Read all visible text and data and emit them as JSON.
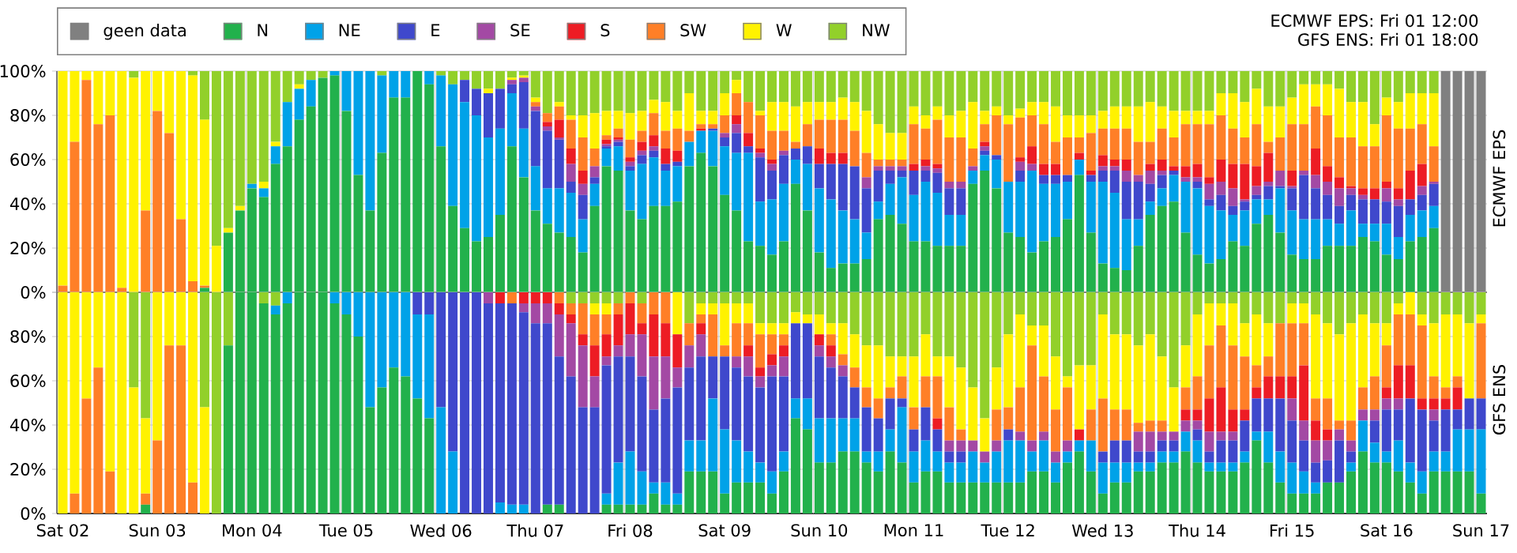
{
  "chart_data": [
    {
      "type": "bar",
      "stacked": true,
      "grid": true,
      "legend": "top left",
      "tick_labels": "y",
      "ylabel": "ECMWF EPS",
      "annotations": [
        "ECMWF EPS: Fri 01 12:00",
        "GFS ENS: Fri 01 18:00"
      ],
      "ylim": [
        0,
        100
      ],
      "yticks": [
        {
          "value": 0,
          "label": "0%"
        },
        {
          "value": 20,
          "label": "20%"
        },
        {
          "value": 40,
          "label": "40%"
        },
        {
          "value": 60,
          "label": "60%"
        },
        {
          "value": 80,
          "label": "80%"
        },
        {
          "value": 100,
          "label": "100%"
        }
      ],
      "categories": [
        null,
        null,
        null,
        null,
        null,
        null,
        null,
        null,
        null,
        null,
        null,
        null,
        null,
        null,
        null,
        null,
        null,
        null,
        null,
        null,
        null,
        null,
        null,
        null,
        null,
        null,
        null,
        null,
        null,
        null,
        null,
        null,
        null,
        null,
        null,
        null,
        null,
        null,
        null,
        null,
        null,
        null,
        null,
        null,
        null,
        null,
        null,
        null,
        null,
        null,
        null,
        null,
        null,
        null,
        null,
        null,
        null,
        null,
        null,
        null,
        null,
        null,
        null,
        null,
        null,
        null,
        null,
        null,
        null,
        null,
        null,
        null,
        null,
        null,
        null,
        null,
        null,
        null,
        null,
        null,
        null,
        null,
        null,
        null,
        null,
        null,
        null,
        null,
        null,
        null,
        null,
        null,
        null,
        null,
        null,
        null,
        null,
        null,
        null,
        null,
        null,
        null,
        null,
        null,
        null,
        null,
        null,
        null,
        null,
        null,
        null,
        null,
        null,
        null,
        null,
        null,
        null,
        null,
        null,
        null,
        null
      ],
      "series": [
        {
          "name": "geen data",
          "color": "#808080",
          "values": [
            0,
            0,
            0,
            0,
            0,
            0,
            0,
            0,
            0,
            0,
            0,
            0,
            0,
            0,
            0,
            0,
            0,
            0,
            0,
            0,
            0,
            0,
            0,
            0,
            0,
            0,
            0,
            0,
            0,
            0,
            0,
            0,
            0,
            0,
            0,
            0,
            0,
            0,
            0,
            0,
            0,
            0,
            0,
            0,
            0,
            0,
            0,
            0,
            0,
            0,
            0,
            0,
            0,
            0,
            0,
            0,
            0,
            0,
            0,
            0,
            0,
            0,
            0,
            0,
            0,
            0,
            0,
            0,
            0,
            0,
            0,
            0,
            0,
            0,
            0,
            0,
            0,
            0,
            0,
            0,
            0,
            0,
            0,
            0,
            0,
            0,
            0,
            0,
            0,
            0,
            0,
            0,
            0,
            0,
            0,
            0,
            0,
            0,
            0,
            0,
            0,
            0,
            0,
            0,
            0,
            0,
            0,
            0,
            0,
            0,
            0,
            0,
            0,
            0,
            0,
            0,
            0,
            100,
            100,
            100,
            100
          ]
        },
        {
          "name": "N",
          "color": "#22b14c",
          "values": [
            0,
            0,
            0,
            0,
            0,
            0,
            0,
            0,
            0,
            0,
            0,
            0,
            2,
            0,
            27,
            37,
            47,
            43,
            58,
            66,
            78,
            84,
            97,
            98,
            82,
            53,
            37,
            63,
            88,
            88,
            100,
            94,
            66,
            39,
            29,
            23,
            25,
            35,
            66,
            52,
            37,
            31,
            27,
            25,
            18,
            39,
            57,
            55,
            37,
            33,
            39,
            39,
            41,
            57,
            63,
            57,
            44,
            37,
            23,
            21,
            17,
            23,
            49,
            37,
            18,
            11,
            13,
            13,
            15,
            33,
            35,
            31,
            23,
            23,
            21,
            21,
            21,
            49,
            55,
            47,
            27,
            25,
            18,
            23,
            25,
            33,
            53,
            27,
            13,
            11,
            10,
            21,
            35,
            39,
            41,
            27,
            17,
            13,
            15,
            23,
            21,
            31,
            35,
            27,
            17,
            15,
            15,
            21,
            21,
            21,
            25,
            23,
            17,
            15,
            23,
            25,
            29,
            0,
            0,
            0,
            0
          ]
        },
        {
          "name": "NE",
          "color": "#00a2e8",
          "values": [
            0,
            0,
            0,
            0,
            0,
            0,
            0,
            0,
            0,
            0,
            0,
            0,
            0,
            0,
            0,
            0,
            2,
            4,
            8,
            20,
            14,
            12,
            0,
            2,
            18,
            47,
            63,
            35,
            12,
            12,
            0,
            6,
            32,
            55,
            57,
            57,
            45,
            39,
            24,
            22,
            20,
            16,
            20,
            20,
            15,
            10,
            8,
            11,
            18,
            25,
            22,
            16,
            16,
            11,
            10,
            16,
            22,
            26,
            40,
            20,
            25,
            26,
            11,
            21,
            29,
            31,
            24,
            20,
            12,
            8,
            14,
            21,
            21,
            27,
            24,
            14,
            14,
            6,
            7,
            13,
            23,
            25,
            37,
            26,
            24,
            17,
            7,
            23,
            37,
            34,
            23,
            12,
            6,
            8,
            12,
            23,
            30,
            26,
            22,
            12,
            16,
            11,
            7,
            20,
            20,
            18,
            18,
            12,
            10,
            16,
            6,
            8,
            14,
            10,
            12,
            12,
            10,
            0,
            0,
            0,
            0
          ]
        },
        {
          "name": "E",
          "color": "#3f48cc",
          "values": [
            0,
            0,
            0,
            0,
            0,
            0,
            0,
            0,
            0,
            0,
            0,
            0,
            0,
            0,
            0,
            0,
            0,
            0,
            0,
            0,
            0,
            0,
            0,
            0,
            0,
            0,
            0,
            0,
            0,
            0,
            0,
            0,
            0,
            0,
            10,
            12,
            20,
            18,
            4,
            21,
            25,
            26,
            22,
            5,
            11,
            3,
            1,
            2,
            2,
            4,
            3,
            3,
            2,
            0,
            0,
            1,
            4,
            9,
            3,
            20,
            13,
            13,
            5,
            8,
            11,
            16,
            21,
            24,
            20,
            14,
            6,
            3,
            11,
            5,
            9,
            12,
            12,
            0,
            2,
            2,
            0,
            5,
            0,
            4,
            4,
            3,
            0,
            3,
            5,
            10,
            17,
            17,
            8,
            6,
            2,
            0,
            3,
            3,
            7,
            4,
            4,
            2,
            6,
            1,
            10,
            20,
            14,
            11,
            8,
            7,
            11,
            11,
            10,
            14,
            7,
            7,
            10,
            0,
            0,
            0,
            0
          ]
        },
        {
          "name": "SE",
          "color": "#a349a4",
          "values": [
            0,
            0,
            0,
            0,
            0,
            0,
            0,
            0,
            0,
            0,
            0,
            0,
            0,
            0,
            0,
            0,
            0,
            0,
            0,
            0,
            0,
            0,
            0,
            0,
            0,
            0,
            0,
            0,
            0,
            0,
            0,
            0,
            0,
            0,
            0,
            0,
            0,
            0,
            2,
            2,
            2,
            2,
            1,
            8,
            5,
            5,
            1,
            1,
            2,
            2,
            2,
            0,
            0,
            0,
            0,
            0,
            2,
            4,
            0,
            2,
            3,
            2,
            0,
            0,
            0,
            0,
            0,
            0,
            5,
            2,
            2,
            2,
            0,
            2,
            2,
            3,
            3,
            2,
            2,
            0,
            0,
            4,
            3,
            0,
            0,
            0,
            0,
            0,
            2,
            2,
            5,
            3,
            6,
            2,
            0,
            2,
            2,
            7,
            6,
            8,
            1,
            4,
            2,
            7,
            1,
            2,
            6,
            6,
            8,
            3,
            2,
            0,
            6,
            3,
            0,
            4,
            1,
            0,
            0,
            0,
            0
          ]
        },
        {
          "name": "S",
          "color": "#ed1c24",
          "values": [
            0,
            0,
            0,
            0,
            0,
            0,
            0,
            0,
            0,
            0,
            0,
            0,
            0,
            0,
            0,
            0,
            0,
            0,
            0,
            0,
            0,
            0,
            0,
            0,
            0,
            0,
            0,
            0,
            0,
            0,
            0,
            0,
            0,
            0,
            0,
            0,
            0,
            0,
            0,
            0,
            0,
            2,
            8,
            7,
            6,
            0,
            2,
            1,
            2,
            4,
            5,
            7,
            5,
            0,
            1,
            0,
            0,
            4,
            6,
            2,
            2,
            0,
            0,
            0,
            7,
            5,
            5,
            0,
            0,
            0,
            0,
            0,
            3,
            3,
            2,
            0,
            0,
            0,
            2,
            0,
            0,
            2,
            8,
            5,
            5,
            0,
            3,
            2,
            5,
            3,
            5,
            0,
            3,
            5,
            2,
            5,
            6,
            3,
            10,
            11,
            16,
            9,
            13,
            0,
            7,
            0,
            12,
            7,
            5,
            1,
            3,
            5,
            3,
            5,
            13,
            10,
            0,
            0,
            0,
            0,
            0
          ]
        },
        {
          "name": "SW",
          "color": "#ff7f27",
          "values": [
            3,
            68,
            96,
            76,
            80,
            2,
            0,
            37,
            82,
            72,
            33,
            5,
            1,
            0,
            0,
            0,
            0,
            0,
            0,
            0,
            0,
            0,
            0,
            0,
            0,
            0,
            0,
            0,
            0,
            0,
            0,
            0,
            0,
            0,
            0,
            0,
            0,
            0,
            0,
            0,
            2,
            4,
            6,
            13,
            15,
            8,
            2,
            4,
            8,
            5,
            10,
            8,
            10,
            5,
            2,
            2,
            8,
            10,
            14,
            15,
            13,
            9,
            3,
            10,
            13,
            15,
            15,
            16,
            11,
            3,
            3,
            3,
            18,
            14,
            20,
            20,
            20,
            8,
            8,
            18,
            26,
            18,
            14,
            18,
            10,
            17,
            7,
            17,
            12,
            14,
            14,
            15,
            10,
            14,
            13,
            19,
            18,
            24,
            20,
            16,
            12,
            19,
            5,
            15,
            21,
            21,
            19,
            23,
            18,
            22,
            19,
            19,
            30,
            27,
            19,
            18,
            16,
            0,
            0,
            0,
            0
          ]
        },
        {
          "name": "W",
          "color": "#fff200",
          "values": [
            97,
            32,
            4,
            24,
            20,
            98,
            97,
            63,
            18,
            28,
            67,
            93,
            75,
            21,
            2,
            2,
            0,
            3,
            2,
            0,
            2,
            0,
            0,
            0,
            0,
            0,
            0,
            0,
            0,
            0,
            0,
            0,
            0,
            0,
            0,
            0,
            2,
            0,
            1,
            1,
            2,
            0,
            2,
            2,
            10,
            16,
            11,
            8,
            12,
            9,
            6,
            13,
            8,
            17,
            6,
            6,
            10,
            6,
            0,
            2,
            13,
            13,
            16,
            10,
            8,
            8,
            10,
            13,
            19,
            16,
            12,
            12,
            8,
            6,
            6,
            10,
            12,
            21,
            6,
            4,
            4,
            4,
            6,
            10,
            16,
            10,
            10,
            8,
            8,
            10,
            10,
            16,
            18,
            10,
            12,
            6,
            6,
            6,
            10,
            16,
            16,
            16,
            16,
            14,
            12,
            18,
            10,
            14,
            22,
            16,
            20,
            10,
            8,
            12,
            16,
            14,
            24,
            0,
            0,
            0,
            0
          ]
        },
        {
          "name": "NW",
          "color": "#92d02a",
          "values": [
            0,
            0,
            0,
            0,
            0,
            0,
            3,
            0,
            0,
            0,
            0,
            2,
            22,
            79,
            71,
            61,
            51,
            50,
            32,
            14,
            6,
            4,
            3,
            0,
            0,
            0,
            0,
            2,
            0,
            0,
            0,
            0,
            2,
            6,
            4,
            8,
            8,
            8,
            3,
            2,
            12,
            19,
            14,
            20,
            20,
            19,
            18,
            18,
            19,
            18,
            13,
            14,
            18,
            10,
            18,
            18,
            10,
            4,
            14,
            18,
            14,
            14,
            16,
            14,
            14,
            14,
            12,
            14,
            18,
            24,
            28,
            28,
            16,
            20,
            16,
            20,
            18,
            14,
            18,
            16,
            20,
            17,
            14,
            14,
            16,
            20,
            20,
            20,
            18,
            16,
            16,
            16,
            14,
            16,
            18,
            18,
            18,
            18,
            10,
            10,
            14,
            8,
            16,
            16,
            12,
            6,
            6,
            6,
            8,
            14,
            14,
            24,
            12,
            14,
            10,
            10,
            10,
            0,
            0,
            0,
            0
          ]
        }
      ]
    },
    {
      "type": "bar",
      "stacked": true,
      "grid": true,
      "legend": false,
      "ylabel": "GFS ENS",
      "ylim": [
        0,
        100
      ],
      "yticks": [
        {
          "value": 0,
          "label": "0%"
        },
        {
          "value": 20,
          "label": "20%"
        },
        {
          "value": 40,
          "label": "40%"
        },
        {
          "value": 60,
          "label": "60%"
        },
        {
          "value": 80,
          "label": "80%"
        },
        {
          "value": 100,
          "label": null
        }
      ],
      "categories": [
        "Sat 02",
        null,
        null,
        null,
        null,
        null,
        null,
        null,
        "Sun 03",
        null,
        null,
        null,
        null,
        null,
        null,
        null,
        "Mon 04",
        null,
        null,
        null,
        null,
        null,
        null,
        null,
        "Tue 05",
        null,
        null,
        null,
        null,
        null,
        null,
        null,
        "Wed 06",
        null,
        null,
        null,
        null,
        null,
        null,
        null,
        "Thu 07",
        null,
        null,
        null,
        null,
        null,
        null,
        null,
        "Fri 08",
        null,
        null,
        null,
        null,
        null,
        null,
        null,
        "Sat 09",
        null,
        null,
        null,
        null,
        null,
        null,
        null,
        "Sun 10",
        null,
        null,
        null,
        null,
        null,
        null,
        null,
        "Mon 11",
        null,
        null,
        null,
        null,
        null,
        null,
        null,
        "Tue 12",
        null,
        null,
        null,
        null,
        null,
        null,
        null,
        "Wed 13",
        null,
        null,
        null,
        null,
        null,
        null,
        null,
        "Thu 14",
        null,
        null,
        null,
        null,
        null,
        null,
        null,
        "Fri 15",
        null,
        null,
        null,
        null,
        null,
        null,
        null,
        "Sat 16",
        null,
        null,
        null,
        null,
        null,
        null,
        null,
        "Sun 17"
      ],
      "series": [
        {
          "color": "#22b14c",
          "values": [
            0,
            0,
            0,
            0,
            0,
            0,
            0,
            4,
            0,
            0,
            0,
            0,
            0,
            0,
            76,
            100,
            100,
            95,
            90,
            95,
            100,
            100,
            100,
            95,
            90,
            80,
            48,
            57,
            66,
            62,
            52,
            43,
            0,
            0,
            0,
            0,
            0,
            0,
            0,
            0,
            0,
            4,
            4,
            0,
            0,
            0,
            4,
            4,
            4,
            4,
            9,
            4,
            4,
            19,
            19,
            19,
            9,
            14,
            14,
            14,
            9,
            19,
            43,
            38,
            23,
            23,
            28,
            28,
            23,
            19,
            28,
            23,
            14,
            19,
            19,
            14,
            14,
            14,
            14,
            14,
            14,
            14,
            19,
            19,
            14,
            23,
            28,
            19,
            9,
            14,
            14,
            19,
            19,
            23,
            23,
            28,
            23,
            19,
            19,
            19,
            23,
            33,
            23,
            14,
            9,
            9,
            9,
            14,
            14,
            19,
            28,
            23,
            23,
            19,
            14,
            9,
            19,
            19,
            19,
            19,
            9
          ]
        },
        {
          "color": "#00a2e8",
          "values": [
            0,
            0,
            0,
            0,
            0,
            0,
            0,
            0,
            0,
            0,
            0,
            0,
            0,
            0,
            0,
            0,
            0,
            0,
            4,
            5,
            0,
            0,
            0,
            5,
            10,
            20,
            52,
            43,
            34,
            38,
            38,
            47,
            48,
            28,
            0,
            0,
            0,
            5,
            4,
            4,
            0,
            0,
            0,
            0,
            0,
            0,
            5,
            19,
            24,
            15,
            5,
            10,
            5,
            14,
            14,
            33,
            29,
            19,
            14,
            9,
            10,
            9,
            9,
            14,
            20,
            20,
            15,
            15,
            5,
            9,
            10,
            25,
            14,
            14,
            9,
            9,
            9,
            14,
            9,
            14,
            19,
            19,
            9,
            14,
            9,
            5,
            5,
            14,
            14,
            9,
            9,
            4,
            4,
            5,
            5,
            9,
            10,
            4,
            4,
            4,
            5,
            4,
            14,
            14,
            14,
            10,
            5,
            0,
            0,
            4,
            14,
            9,
            5,
            14,
            9,
            10,
            9,
            9,
            19,
            19,
            29
          ]
        },
        {
          "color": "#3f48cc",
          "values": [
            0,
            0,
            0,
            0,
            0,
            0,
            0,
            0,
            0,
            0,
            0,
            0,
            0,
            0,
            0,
            0,
            0,
            0,
            0,
            0,
            0,
            0,
            0,
            0,
            0,
            0,
            0,
            0,
            0,
            0,
            10,
            10,
            52,
            72,
            100,
            100,
            95,
            90,
            91,
            87,
            86,
            82,
            67,
            62,
            48,
            48,
            58,
            48,
            43,
            43,
            33,
            38,
            48,
            33,
            38,
            19,
            33,
            33,
            34,
            34,
            43,
            34,
            34,
            34,
            28,
            23,
            19,
            14,
            20,
            15,
            14,
            4,
            10,
            15,
            10,
            5,
            5,
            0,
            0,
            0,
            5,
            0,
            0,
            0,
            0,
            0,
            0,
            0,
            5,
            10,
            10,
            5,
            5,
            5,
            5,
            0,
            5,
            5,
            10,
            10,
            14,
            15,
            15,
            24,
            19,
            14,
            9,
            10,
            19,
            5,
            0,
            10,
            19,
            14,
            29,
            28,
            14,
            19,
            9,
            14,
            14
          ]
        },
        {
          "color": "#a349a4",
          "values": [
            0,
            0,
            0,
            0,
            0,
            0,
            0,
            0,
            0,
            0,
            0,
            0,
            0,
            0,
            0,
            0,
            0,
            0,
            0,
            0,
            0,
            0,
            0,
            0,
            0,
            0,
            0,
            0,
            0,
            0,
            0,
            0,
            0,
            0,
            0,
            0,
            5,
            0,
            0,
            4,
            9,
            9,
            19,
            24,
            28,
            14,
            4,
            5,
            10,
            19,
            24,
            19,
            9,
            10,
            10,
            0,
            0,
            5,
            9,
            5,
            5,
            9,
            0,
            0,
            5,
            5,
            5,
            0,
            0,
            0,
            0,
            0,
            0,
            0,
            0,
            5,
            5,
            5,
            5,
            5,
            0,
            4,
            5,
            4,
            5,
            5,
            0,
            0,
            0,
            0,
            0,
            9,
            9,
            4,
            4,
            5,
            4,
            9,
            4,
            4,
            0,
            0,
            0,
            0,
            10,
            9,
            10,
            9,
            5,
            5,
            5,
            5,
            5,
            5,
            0,
            0,
            5,
            0,
            0,
            0,
            0
          ]
        },
        {
          "color": "#ed1c24",
          "values": [
            0,
            0,
            0,
            0,
            0,
            0,
            0,
            0,
            0,
            0,
            0,
            0,
            0,
            0,
            0,
            0,
            0,
            0,
            0,
            0,
            0,
            0,
            0,
            0,
            0,
            0,
            0,
            0,
            0,
            0,
            0,
            0,
            0,
            0,
            0,
            0,
            0,
            5,
            0,
            5,
            5,
            5,
            5,
            4,
            5,
            14,
            10,
            14,
            14,
            5,
            19,
            15,
            15,
            0,
            5,
            0,
            0,
            0,
            5,
            4,
            5,
            5,
            0,
            0,
            5,
            5,
            0,
            0,
            0,
            0,
            0,
            0,
            0,
            0,
            5,
            0,
            0,
            0,
            0,
            0,
            0,
            0,
            0,
            0,
            0,
            0,
            5,
            0,
            0,
            0,
            0,
            0,
            0,
            0,
            0,
            5,
            5,
            15,
            20,
            10,
            5,
            5,
            10,
            10,
            10,
            25,
            9,
            5,
            0,
            0,
            0,
            0,
            5,
            15,
            15,
            5,
            5,
            5,
            10,
            0,
            0
          ]
        },
        {
          "color": "#ff7f27",
          "values": [
            0,
            9,
            52,
            66,
            19,
            0,
            0,
            5,
            33,
            76,
            76,
            14,
            0,
            0,
            0,
            0,
            0,
            0,
            0,
            0,
            0,
            0,
            0,
            0,
            0,
            0,
            0,
            0,
            0,
            0,
            0,
            0,
            0,
            0,
            0,
            0,
            0,
            0,
            5,
            0,
            0,
            0,
            5,
            5,
            14,
            14,
            9,
            5,
            5,
            9,
            10,
            14,
            0,
            10,
            4,
            19,
            5,
            15,
            10,
            15,
            9,
            5,
            0,
            0,
            0,
            5,
            5,
            9,
            9,
            9,
            5,
            10,
            10,
            14,
            19,
            15,
            5,
            0,
            0,
            14,
            10,
            20,
            43,
            25,
            19,
            24,
            0,
            14,
            24,
            14,
            14,
            4,
            5,
            5,
            0,
            10,
            15,
            24,
            28,
            29,
            24,
            10,
            9,
            24,
            24,
            19,
            10,
            14,
            4,
            9,
            10,
            15,
            19,
            23,
            23,
            33,
            10,
            5,
            5,
            0,
            34
          ]
        },
        {
          "color": "#fff200",
          "values": [
            100,
            91,
            48,
            34,
            81,
            100,
            57,
            34,
            67,
            24,
            24,
            86,
            48,
            0,
            0,
            0,
            0,
            0,
            0,
            0,
            0,
            0,
            0,
            0,
            0,
            0,
            0,
            0,
            0,
            0,
            0,
            0,
            0,
            0,
            0,
            0,
            0,
            0,
            0,
            0,
            0,
            0,
            0,
            0,
            0,
            5,
            5,
            0,
            0,
            0,
            0,
            0,
            19,
            0,
            5,
            5,
            19,
            9,
            9,
            5,
            5,
            5,
            5,
            4,
            9,
            5,
            14,
            15,
            19,
            24,
            14,
            9,
            23,
            19,
            9,
            23,
            28,
            24,
            15,
            19,
            33,
            33,
            9,
            23,
            24,
            5,
            29,
            20,
            38,
            34,
            34,
            35,
            39,
            29,
            20,
            19,
            28,
            19,
            10,
            19,
            15,
            23,
            15,
            0,
            9,
            9,
            38,
            34,
            39,
            44,
            33,
            24,
            10,
            5,
            10,
            5,
            24,
            33,
            28,
            34,
            4
          ]
        },
        {
          "color": "#92d02a",
          "values": [
            0,
            0,
            0,
            0,
            0,
            0,
            43,
            57,
            0,
            0,
            0,
            0,
            52,
            100,
            24,
            0,
            0,
            5,
            6,
            0,
            0,
            0,
            0,
            0,
            0,
            0,
            0,
            0,
            0,
            0,
            0,
            0,
            0,
            0,
            0,
            0,
            0,
            0,
            0,
            0,
            0,
            0,
            0,
            5,
            5,
            5,
            5,
            5,
            0,
            5,
            0,
            0,
            0,
            14,
            5,
            5,
            5,
            5,
            5,
            14,
            14,
            14,
            9,
            10,
            10,
            14,
            14,
            19,
            24,
            24,
            29,
            29,
            29,
            19,
            29,
            29,
            34,
            43,
            57,
            34,
            19,
            10,
            15,
            15,
            29,
            38,
            33,
            33,
            10,
            19,
            19,
            24,
            19,
            29,
            43,
            24,
            10,
            5,
            5,
            5,
            14,
            10,
            14,
            14,
            5,
            5,
            10,
            14,
            19,
            14,
            10,
            14,
            14,
            5,
            0,
            10,
            14,
            10,
            10,
            14,
            10
          ]
        }
      ]
    }
  ]
}
